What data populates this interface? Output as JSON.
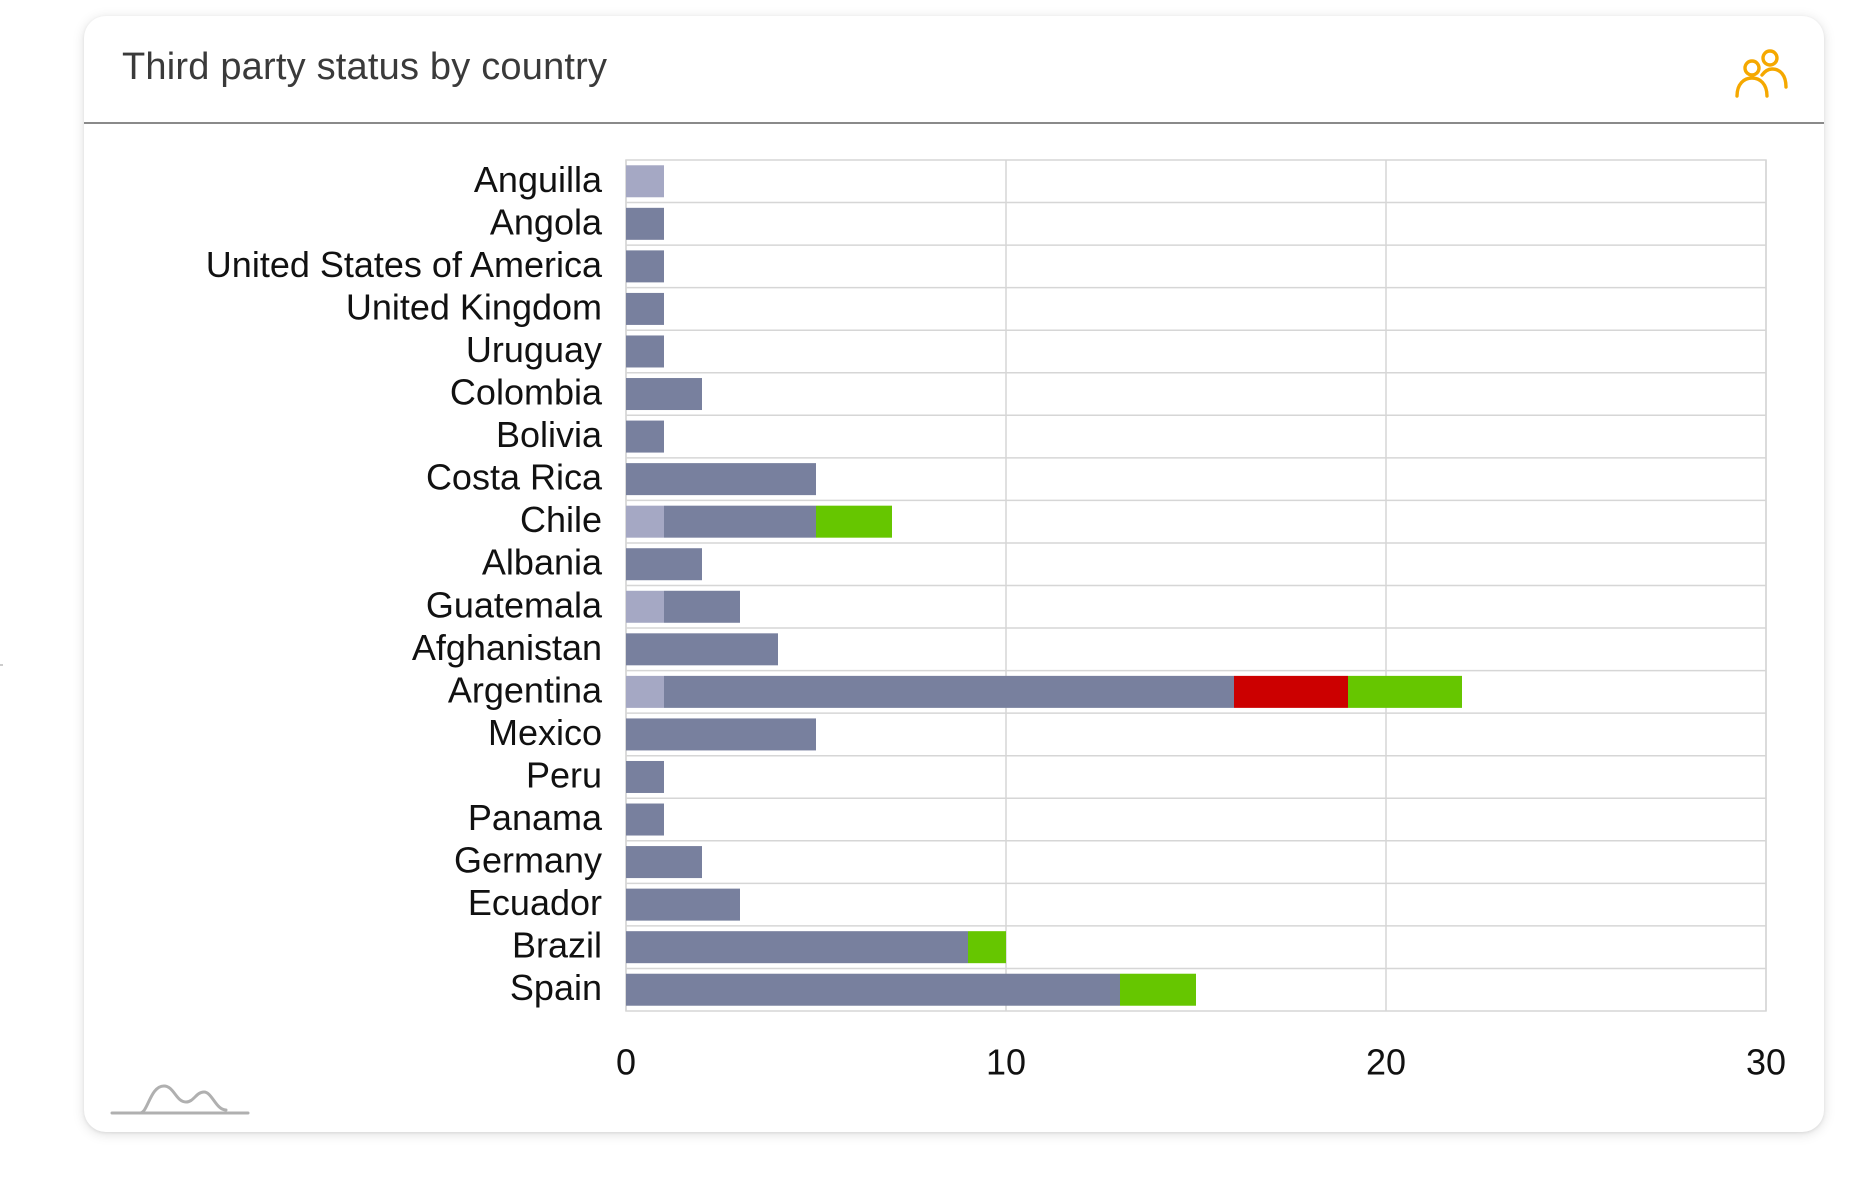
{
  "card": {
    "title": "Third party status by country",
    "header_icon": "users-icon",
    "footer_icon": "chart-logo-icon"
  },
  "colors": {
    "accent": "#f5a800",
    "grid": "#d6d6d6",
    "axis_text": "#111111"
  },
  "chart_data": {
    "type": "bar",
    "orientation": "horizontal",
    "stacked": true,
    "categories": [
      "Anguilla",
      "Angola",
      "United States of America",
      "United Kingdom",
      "Uruguay",
      "Colombia",
      "Bolivia",
      "Costa Rica",
      "Chile",
      "Albania",
      "Guatemala",
      "Afghanistan",
      "Argentina",
      "Mexico",
      "Peru",
      "Panama",
      "Germany",
      "Ecuador",
      "Brazil",
      "Spain"
    ],
    "series": [
      {
        "color": "#a5a8c4",
        "values": [
          1,
          0,
          0,
          0,
          0,
          0,
          0,
          0,
          1,
          0,
          1,
          0,
          1,
          0,
          0,
          0,
          0,
          0,
          0,
          0
        ]
      },
      {
        "color": "#78809e",
        "values": [
          0,
          1,
          1,
          1,
          1,
          2,
          1,
          5,
          4,
          2,
          2,
          4,
          15,
          5,
          1,
          1,
          2,
          3,
          9,
          13
        ]
      },
      {
        "color": "#cc0000",
        "values": [
          0,
          0,
          0,
          0,
          0,
          0,
          0,
          0,
          0,
          0,
          0,
          0,
          3,
          0,
          0,
          0,
          0,
          0,
          0,
          0
        ]
      },
      {
        "color": "#66c600",
        "values": [
          0,
          0,
          0,
          0,
          0,
          0,
          0,
          0,
          2,
          0,
          0,
          0,
          3,
          0,
          0,
          0,
          0,
          0,
          1,
          2
        ]
      }
    ],
    "xlim": [
      0,
      30
    ],
    "xticks": [
      "0",
      "10",
      "20",
      "30"
    ],
    "grid": true,
    "legend": "none"
  }
}
